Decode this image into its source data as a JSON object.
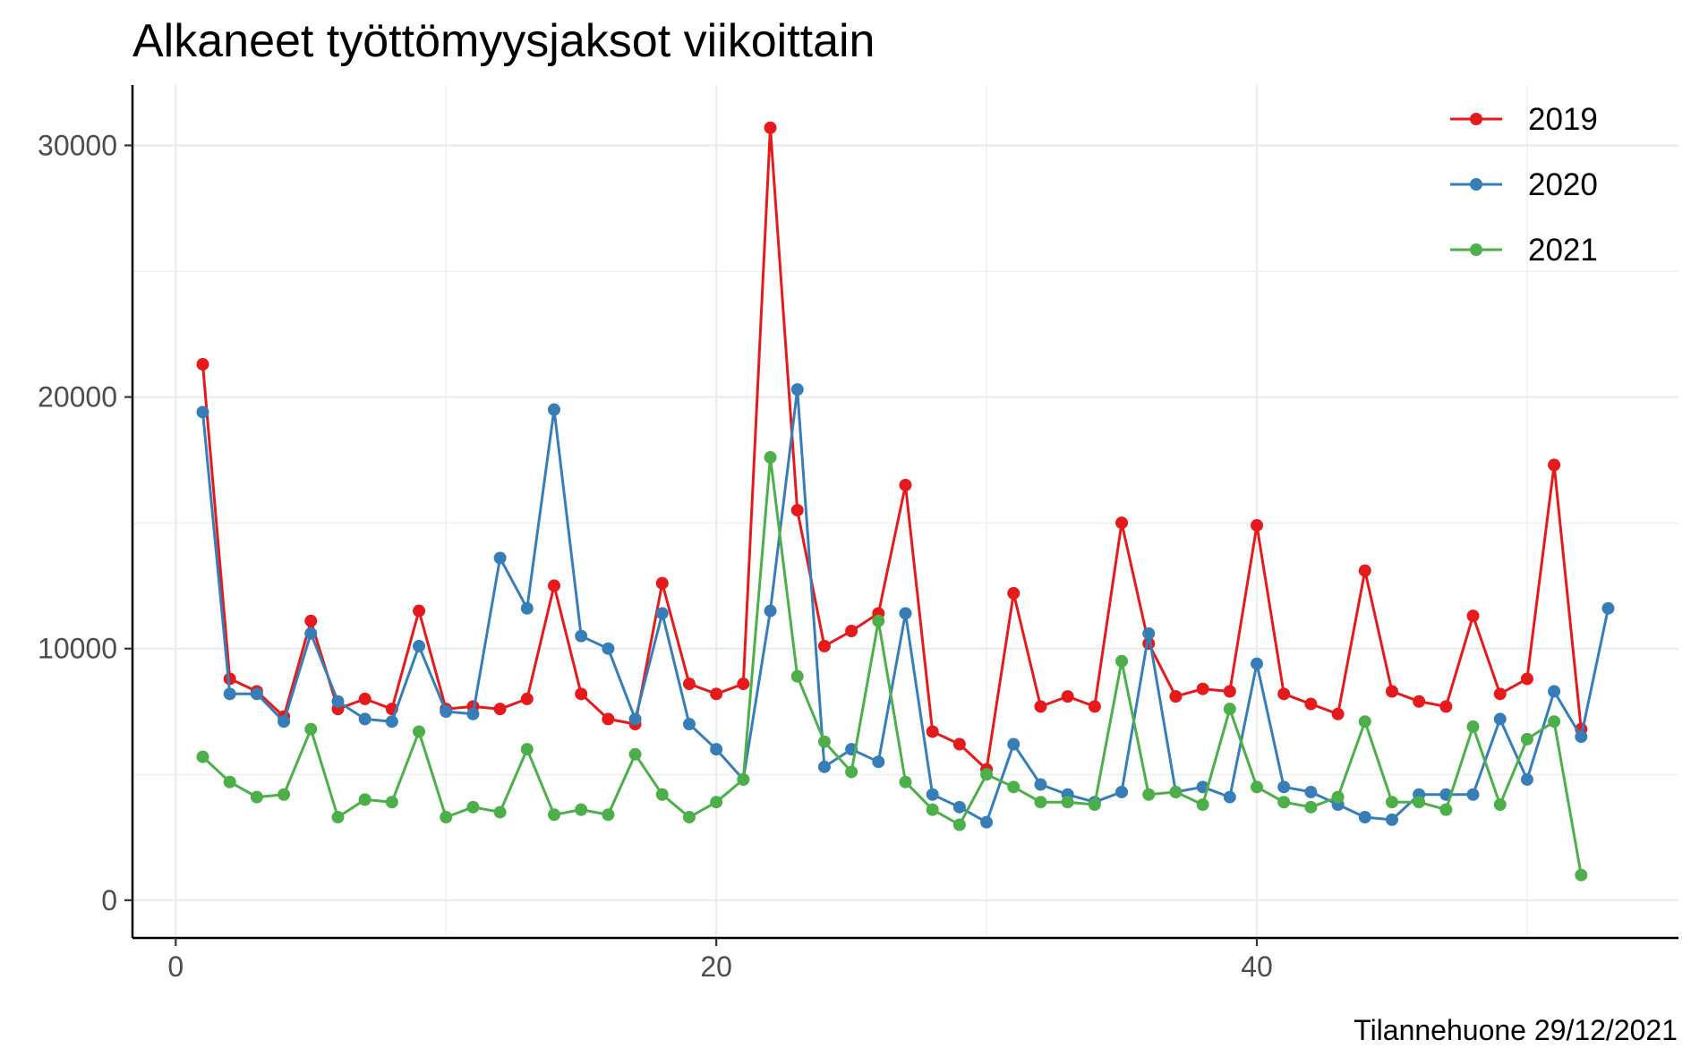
{
  "chart_data": {
    "type": "line",
    "title": "Alkaneet työttömyysjaksot viikoittain",
    "xlabel": "",
    "ylabel": "",
    "caption": "Tilannehuone 29/12/2021",
    "xlim": [
      -1.6,
      55.6
    ],
    "ylim": [
      -1500,
      32400
    ],
    "x_ticks": [
      0,
      20,
      40
    ],
    "y_ticks": [
      0,
      10000,
      20000,
      30000
    ],
    "x_minor_ticks": [
      10,
      30,
      50
    ],
    "y_minor_ticks": [
      5000,
      15000,
      25000
    ],
    "grid": true,
    "legend": {
      "position": "top-right",
      "entries": [
        "2019",
        "2020",
        "2021"
      ]
    },
    "series": [
      {
        "name": "2019",
        "color": "#e41a1c",
        "x": [
          1,
          2,
          3,
          4,
          5,
          6,
          7,
          8,
          9,
          10,
          11,
          12,
          13,
          14,
          15,
          16,
          17,
          18,
          19,
          20,
          21,
          22,
          23,
          24,
          25,
          26,
          27,
          28,
          29,
          30,
          31,
          32,
          33,
          34,
          35,
          36,
          37,
          38,
          39,
          40,
          41,
          42,
          43,
          44,
          45,
          46,
          47,
          48,
          49,
          50,
          51,
          52
        ],
        "values": [
          21300,
          8800,
          8300,
          7300,
          11100,
          7600,
          8000,
          7600,
          11500,
          7600,
          7700,
          7600,
          8000,
          12500,
          8200,
          7200,
          7000,
          12600,
          8600,
          8200,
          8600,
          30700,
          15500,
          10100,
          10700,
          11400,
          16500,
          6700,
          6200,
          5200,
          12200,
          7700,
          8100,
          7700,
          15000,
          10200,
          8100,
          8400,
          8300,
          14900,
          8200,
          7800,
          7400,
          13100,
          8300,
          7900,
          7700,
          11300,
          8200,
          8800,
          17300,
          6800
        ]
      },
      {
        "name": "2020",
        "color": "#377eb8",
        "x": [
          1,
          2,
          3,
          4,
          5,
          6,
          7,
          8,
          9,
          10,
          11,
          12,
          13,
          14,
          15,
          16,
          17,
          18,
          19,
          20,
          21,
          22,
          23,
          24,
          25,
          26,
          27,
          28,
          29,
          30,
          31,
          32,
          33,
          34,
          35,
          36,
          37,
          38,
          39,
          40,
          41,
          42,
          43,
          44,
          45,
          46,
          47,
          48,
          49,
          50,
          51,
          52,
          53
        ],
        "values": [
          19400,
          8200,
          8200,
          7100,
          10600,
          7900,
          7200,
          7100,
          10100,
          7500,
          7400,
          13600,
          11600,
          19500,
          10500,
          10000,
          7200,
          11400,
          7000,
          6000,
          4800,
          11500,
          20300,
          5300,
          6000,
          5500,
          11400,
          4200,
          3700,
          3100,
          6200,
          4600,
          4200,
          3900,
          4300,
          10600,
          4300,
          4500,
          4100,
          9400,
          4500,
          4300,
          3800,
          3300,
          3200,
          4200,
          4200,
          4200,
          7200,
          4800,
          8300,
          6500,
          11600
        ]
      },
      {
        "name": "2021",
        "color": "#4daf4a",
        "x": [
          1,
          2,
          3,
          4,
          5,
          6,
          7,
          8,
          9,
          10,
          11,
          12,
          13,
          14,
          15,
          16,
          17,
          18,
          19,
          20,
          21,
          22,
          23,
          24,
          25,
          26,
          27,
          28,
          29,
          30,
          31,
          32,
          33,
          34,
          35,
          36,
          37,
          38,
          39,
          40,
          41,
          42,
          43,
          44,
          45,
          46,
          47,
          48,
          49,
          50,
          51,
          52
        ],
        "values": [
          5700,
          4700,
          4100,
          4200,
          6800,
          3300,
          4000,
          3900,
          6700,
          3300,
          3700,
          3500,
          6000,
          3400,
          3600,
          3400,
          5800,
          4200,
          3300,
          3900,
          4800,
          17600,
          8900,
          6300,
          5100,
          11100,
          4700,
          3600,
          3000,
          5000,
          4500,
          3900,
          3900,
          3800,
          9500,
          4200,
          4300,
          3800,
          7600,
          4500,
          3900,
          3700,
          4100,
          7100,
          3900,
          3900,
          3600,
          6900,
          3800,
          6400,
          7100,
          1000
        ]
      }
    ]
  }
}
